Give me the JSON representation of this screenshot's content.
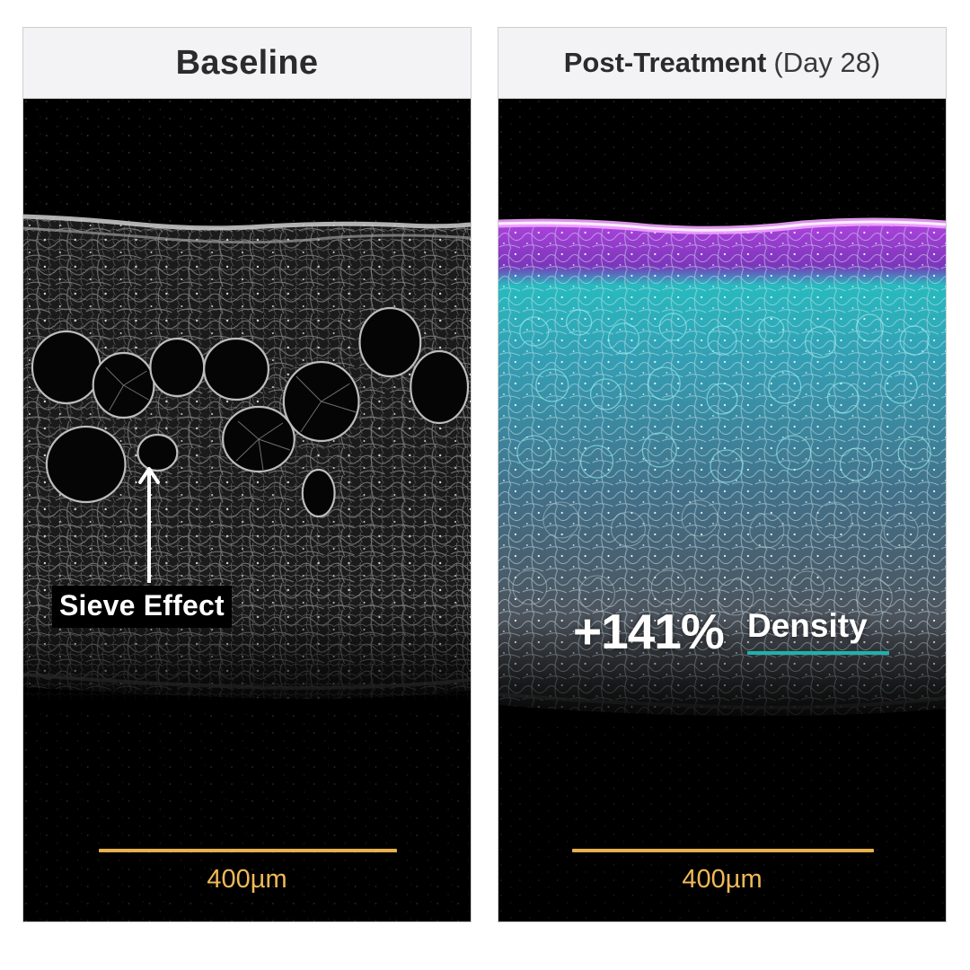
{
  "panels": {
    "left": {
      "title": "Baseline",
      "annotation": "Sieve Effect",
      "scale_bar_label": "400µm"
    },
    "right": {
      "title_bold": "Post-Treatment",
      "title_light": "(Day 28)",
      "stat_value": "+141%",
      "stat_label": "Density",
      "scale_bar_label": "400µm"
    }
  },
  "colors": {
    "scale_bar": "#e8b04a",
    "magenta_band": "#b23cf0",
    "cyan_band": "#2fd6d2",
    "underline_teal": "#1fb1ad",
    "header_bg": "#f3f3f5"
  }
}
